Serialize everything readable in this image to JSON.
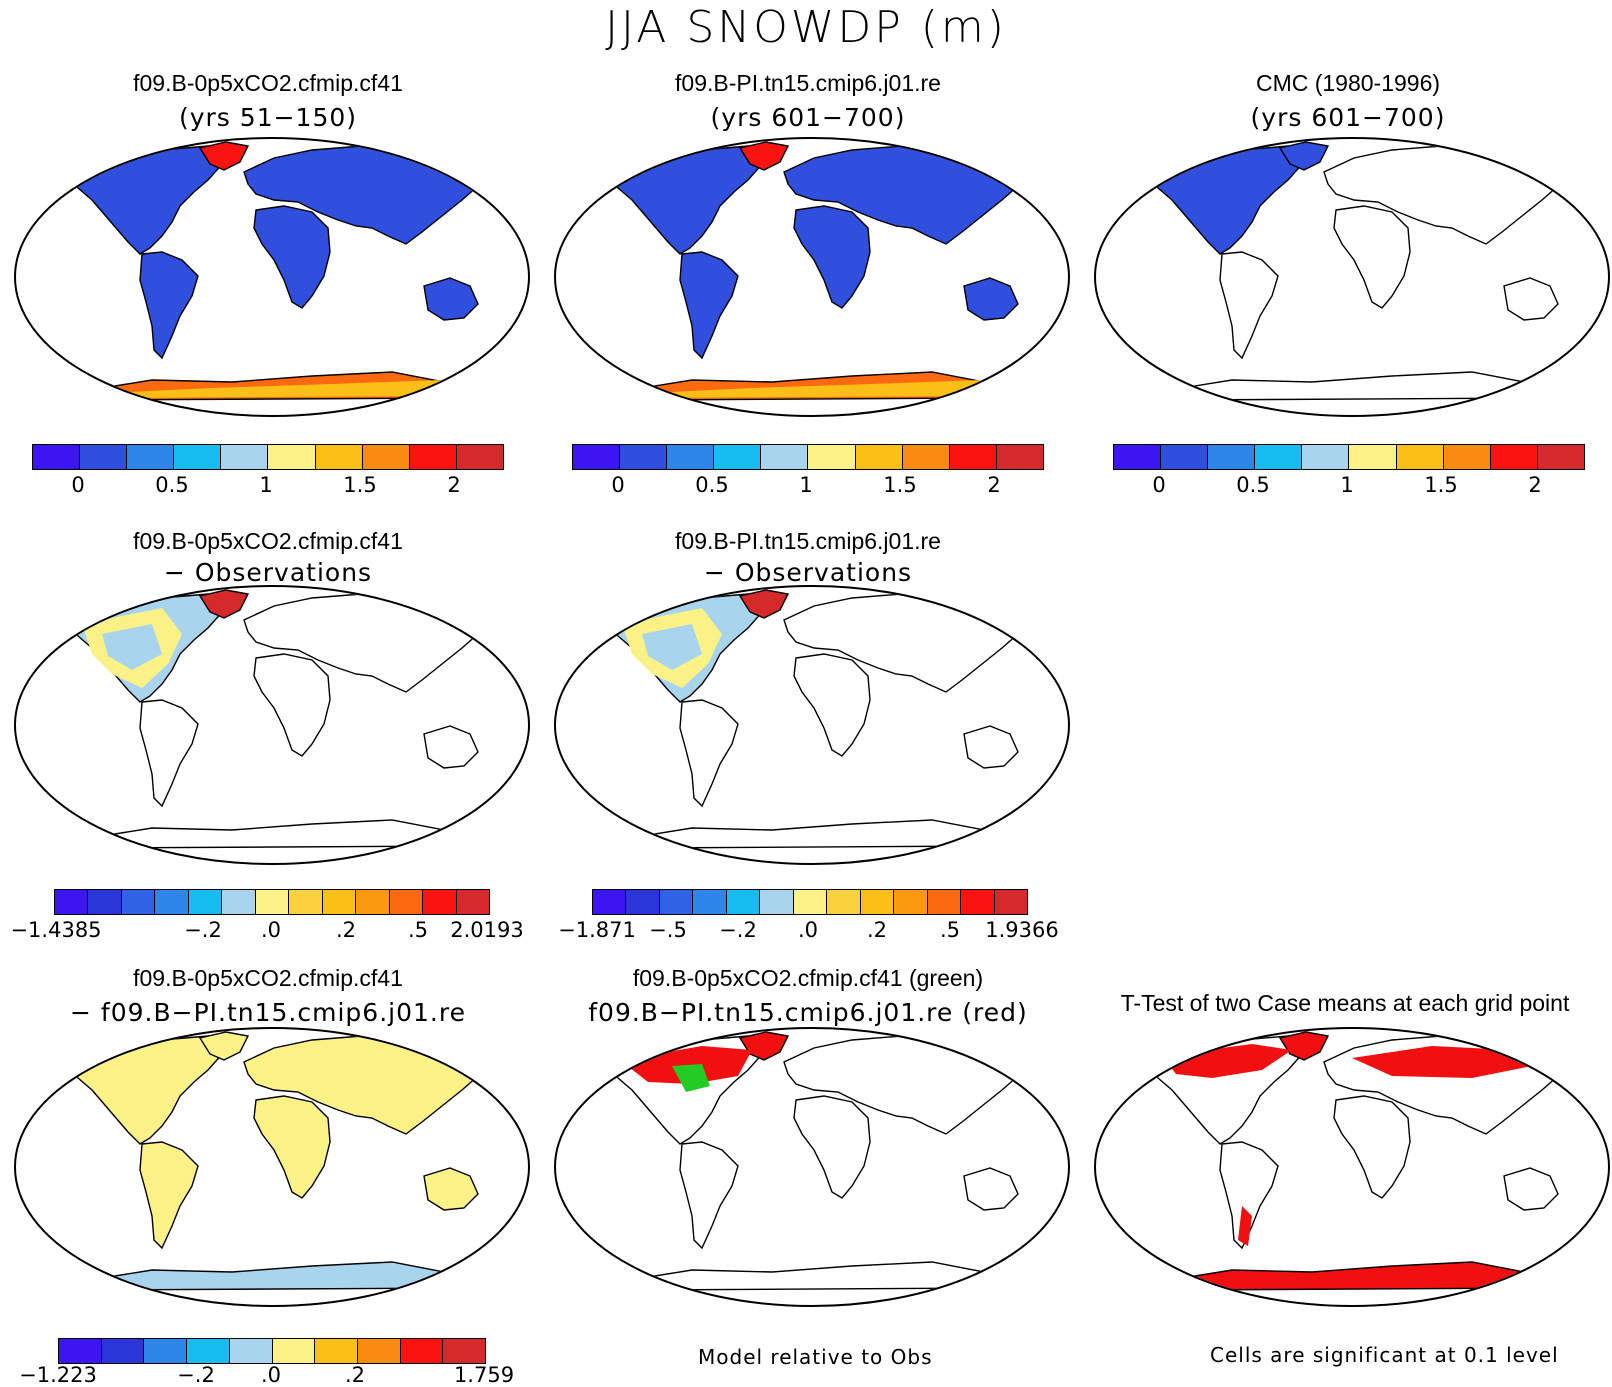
{
  "main_title": "JJA SNOWDP (m)",
  "panels": [
    {
      "title": "f09.B-0p5xCO2.cfmip.cf41",
      "subtitle": "(yrs 51−150)",
      "fill": "model"
    },
    {
      "title": "f09.B-PI.tn15.cmip6.j01.re",
      "subtitle": "(yrs 601−700)",
      "fill": "model"
    },
    {
      "title": "CMC (1980-1996)",
      "subtitle": "(yrs 601−700)",
      "fill": "obs"
    },
    {
      "title": "f09.B-0p5xCO2.cfmip.cf41",
      "subtitle": "− Observations",
      "fill": "diffobs"
    },
    {
      "title": "f09.B-PI.tn15.cmip6.j01.re",
      "subtitle": "− Observations",
      "fill": "diffobs"
    },
    {
      "title": "f09.B-0p5xCO2.cfmip.cf41",
      "subtitle": "− f09.B−PI.tn15.cmip6.j01.re",
      "fill": "diffcase"
    },
    {
      "title": "f09.B-0p5xCO2.cfmip.cf41 (green)",
      "subtitle": "f09.B−PI.tn15.cmip6.j01.re (red)",
      "fill": "overlay"
    },
    {
      "title": "T-Test of two Case means at each grid point",
      "subtitle": "",
      "fill": "ttest"
    }
  ],
  "colorbars": [
    {
      "colors": [
        "#3b16f0",
        "#2f4fdc",
        "#2f86ea",
        "#17bdf0",
        "#a8d4ee",
        "#fbf287",
        "#fbbf18",
        "#fb8a10",
        "#f91410",
        "#d52a2a"
      ],
      "labels": [
        "0",
        "0.5",
        "1",
        "1.5",
        "2"
      ]
    },
    {
      "colors": [
        "#3b16f0",
        "#2f4fdc",
        "#2f86ea",
        "#17bdf0",
        "#a8d4ee",
        "#fbf287",
        "#fbbf18",
        "#fb8a10",
        "#f91410",
        "#d52a2a"
      ],
      "labels": [
        "0",
        "0.5",
        "1",
        "1.5",
        "2"
      ]
    },
    {
      "colors": [
        "#3b16f0",
        "#2f4fdc",
        "#2f86ea",
        "#17bdf0",
        "#a8d4ee",
        "#fbf287",
        "#fbbf18",
        "#fb8a10",
        "#f91410",
        "#d52a2a"
      ],
      "labels": [
        "0",
        "0.5",
        "1",
        "1.5",
        "2"
      ]
    },
    {
      "colors": [
        "#3b16f0",
        "#2a36d8",
        "#2f62e4",
        "#2f86ea",
        "#17bdf0",
        "#a8d4ee",
        "#fbf287",
        "#fbd23e",
        "#fbbf18",
        "#fb9a10",
        "#fb6a10",
        "#f91410",
        "#d52a2a"
      ],
      "labels": [
        "−1.4385",
        "−.2",
        ".0",
        ".2",
        ".5",
        "2.0193"
      ]
    },
    {
      "colors": [
        "#3b16f0",
        "#2a36d8",
        "#2f62e4",
        "#2f86ea",
        "#17bdf0",
        "#a8d4ee",
        "#fbf287",
        "#fbd23e",
        "#fbbf18",
        "#fb9a10",
        "#fb6a10",
        "#f91410",
        "#d52a2a"
      ],
      "labels": [
        "−1.871",
        "−.5",
        "−.2",
        ".0",
        ".2",
        ".5",
        "1.9366"
      ]
    },
    {
      "colors": [
        "#3b16f0",
        "#2a36d8",
        "#2f86ea",
        "#17bdf0",
        "#a8d4ee",
        "#fbf287",
        "#fbbf18",
        "#fb8a10",
        "#f91410",
        "#d52a2a"
      ],
      "labels": [
        "−1.223",
        "−.2",
        ".0",
        ".2",
        "1.759"
      ]
    }
  ],
  "notes": {
    "model_relative": "Model relative to Obs",
    "significance": "Cells are significant at 0.1 level"
  },
  "colors": {
    "snow_low": "#2f4fdc",
    "snow_high": "#d52a2a",
    "diff_zero": "#fbf287",
    "sig_red": "#f01010",
    "green": "#22cc22"
  }
}
